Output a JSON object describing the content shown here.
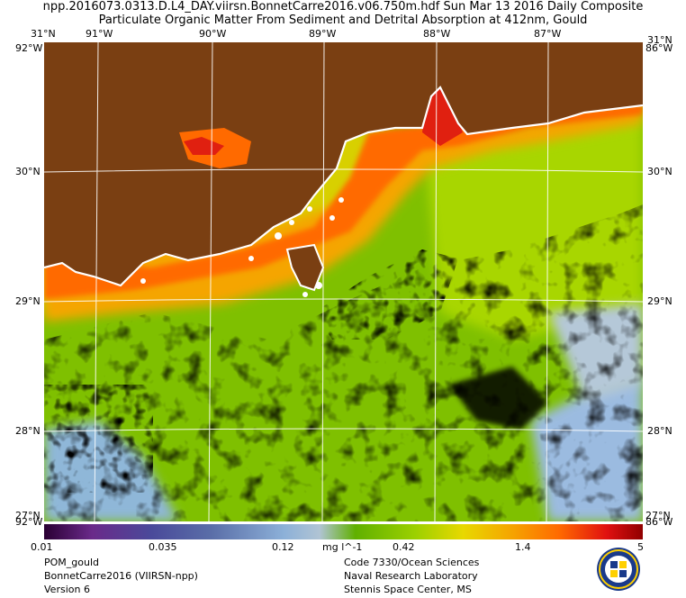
{
  "header": {
    "line1": "npp.2016073.0313.D.L4_DAY.viirsn.BonnetCarre2016.v06.750m.hdf    Sun Mar 13 2016 Daily Composite",
    "line2": "Particulate Organic Matter From Sediment and Detrital Absorption at 412nm, Gould"
  },
  "map": {
    "lon_labels": [
      "91°W",
      "90°W",
      "89°W",
      "88°W",
      "87°W"
    ],
    "lat_labels": [
      "30°N",
      "29°N",
      "28°N"
    ],
    "corner_top_left": "31°N",
    "corner_top_left_lon": "92°W",
    "corner_top_right": "31°N",
    "corner_top_right_lon": "86°W",
    "corner_bottom_left": "27°N",
    "corner_bottom_left_lon": "92°W",
    "corner_bottom_right": "27°N",
    "corner_bottom_right_lon": "86°W"
  },
  "colorbar": {
    "ticks": [
      "0.01",
      "0.035",
      "0.12",
      "0.42",
      "1.4",
      "5"
    ],
    "unit": "mg l^-1"
  },
  "footer": {
    "left": [
      "POM_gould",
      "BonnetCarre2016 (VIIRSN-npp)",
      "Version 6"
    ],
    "right": [
      "Code 7330/Ocean Sciences",
      "Naval Research Laboratory",
      "Stennis Space Center, MS"
    ]
  },
  "colors": {
    "land": "#7a3f12",
    "coast_high": "#ff6a00",
    "mid": "#f5a500",
    "offshore": "#7fc000",
    "clear_water": "#9bbbe0",
    "cloud": "#000000"
  },
  "logo": {
    "icon": "navy-lab-seal-icon"
  }
}
